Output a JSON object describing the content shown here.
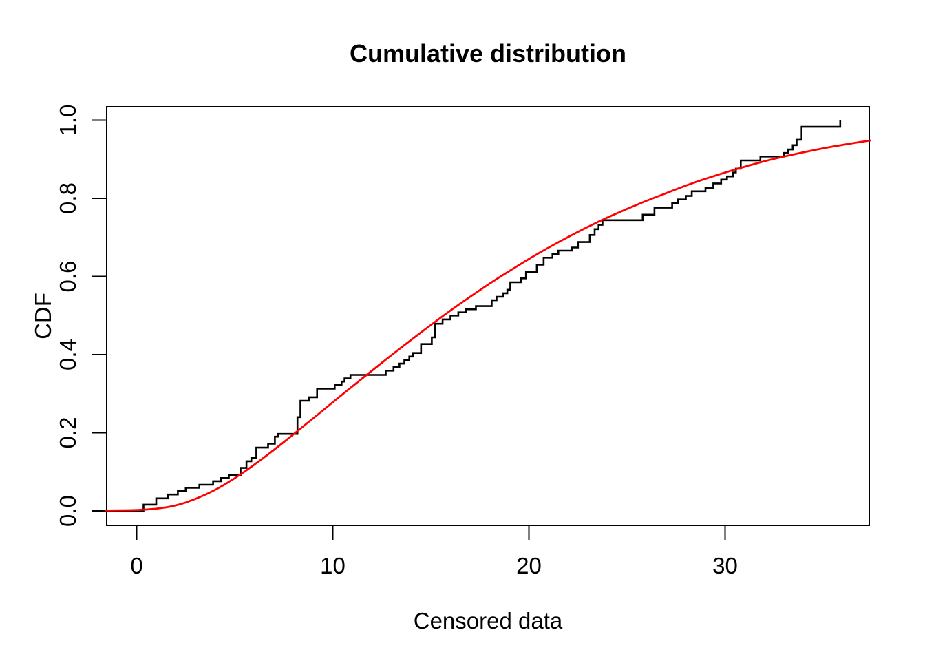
{
  "figure": {
    "background": "#ffffff",
    "frame_color": "#000000"
  },
  "chart_data": {
    "type": "line",
    "title": "Cumulative distribution",
    "xlabel": "Censored data",
    "ylabel": "CDF",
    "x_ticks": [
      0,
      10,
      20,
      30
    ],
    "x_tick_labels": [
      "0",
      "10",
      "20",
      "30"
    ],
    "y_ticks": [
      0.0,
      0.2,
      0.4,
      0.6,
      0.8,
      1.0
    ],
    "y_tick_labels": [
      "0.0",
      "0.2",
      "0.4",
      "0.6",
      "0.8",
      "1.0"
    ],
    "xlim": [
      -1.55,
      37.4
    ],
    "ylim": [
      -0.04,
      1.04
    ],
    "grid": false,
    "legend_position": "none",
    "series": [
      {
        "name": "empirical-cdf-step",
        "type": "step",
        "color": "#000000",
        "description": "Empirical CDF of censored data (step function), steps as [x, cumulative probability after jump]",
        "start_x": -1.55,
        "start_y": 0.0,
        "steps": [
          [
            0.35,
            0.016
          ],
          [
            1.0,
            0.032
          ],
          [
            1.6,
            0.042
          ],
          [
            2.1,
            0.051
          ],
          [
            2.5,
            0.059
          ],
          [
            3.2,
            0.067
          ],
          [
            3.9,
            0.076
          ],
          [
            4.3,
            0.084
          ],
          [
            4.7,
            0.092
          ],
          [
            5.3,
            0.11
          ],
          [
            5.6,
            0.127
          ],
          [
            5.85,
            0.136
          ],
          [
            6.1,
            0.162
          ],
          [
            6.7,
            0.172
          ],
          [
            7.05,
            0.19
          ],
          [
            7.2,
            0.197
          ],
          [
            8.2,
            0.24
          ],
          [
            8.35,
            0.282
          ],
          [
            8.8,
            0.291
          ],
          [
            9.2,
            0.313
          ],
          [
            10.1,
            0.322
          ],
          [
            10.45,
            0.331
          ],
          [
            10.6,
            0.339
          ],
          [
            10.9,
            0.348
          ],
          [
            12.7,
            0.359
          ],
          [
            13.1,
            0.368
          ],
          [
            13.4,
            0.377
          ],
          [
            13.65,
            0.386
          ],
          [
            13.9,
            0.395
          ],
          [
            14.1,
            0.404
          ],
          [
            14.5,
            0.427
          ],
          [
            15.05,
            0.444
          ],
          [
            15.2,
            0.479
          ],
          [
            15.6,
            0.49
          ],
          [
            16.0,
            0.5
          ],
          [
            16.4,
            0.508
          ],
          [
            16.8,
            0.516
          ],
          [
            17.3,
            0.524
          ],
          [
            18.1,
            0.539
          ],
          [
            18.35,
            0.548
          ],
          [
            18.7,
            0.557
          ],
          [
            18.9,
            0.566
          ],
          [
            19.05,
            0.585
          ],
          [
            19.6,
            0.595
          ],
          [
            19.85,
            0.612
          ],
          [
            20.4,
            0.63
          ],
          [
            20.75,
            0.648
          ],
          [
            21.2,
            0.657
          ],
          [
            21.5,
            0.666
          ],
          [
            22.2,
            0.674
          ],
          [
            22.5,
            0.688
          ],
          [
            23.1,
            0.706
          ],
          [
            23.35,
            0.721
          ],
          [
            23.55,
            0.732
          ],
          [
            23.75,
            0.744
          ],
          [
            25.8,
            0.758
          ],
          [
            26.4,
            0.776
          ],
          [
            27.3,
            0.788
          ],
          [
            27.6,
            0.797
          ],
          [
            28.0,
            0.806
          ],
          [
            28.3,
            0.818
          ],
          [
            29.0,
            0.827
          ],
          [
            29.4,
            0.838
          ],
          [
            29.8,
            0.848
          ],
          [
            30.1,
            0.856
          ],
          [
            30.4,
            0.866
          ],
          [
            30.55,
            0.876
          ],
          [
            30.8,
            0.897
          ],
          [
            31.8,
            0.907
          ],
          [
            33.0,
            0.916
          ],
          [
            33.2,
            0.925
          ],
          [
            33.45,
            0.936
          ],
          [
            33.65,
            0.95
          ],
          [
            33.9,
            0.983
          ],
          [
            35.87,
            1.0
          ]
        ]
      },
      {
        "name": "fitted-cdf-curve",
        "type": "smooth-line",
        "color": "#FF0000",
        "description": "Fitted theoretical CDF (red curve), sampled as [x, F(x)]",
        "points": [
          [
            -1.55,
            0.001
          ],
          [
            0,
            0.002
          ],
          [
            1,
            0.005
          ],
          [
            2,
            0.013
          ],
          [
            3,
            0.03
          ],
          [
            4,
            0.053
          ],
          [
            5,
            0.083
          ],
          [
            6,
            0.118
          ],
          [
            7,
            0.156
          ],
          [
            8,
            0.196
          ],
          [
            9,
            0.237
          ],
          [
            10,
            0.278
          ],
          [
            11,
            0.319
          ],
          [
            12,
            0.359
          ],
          [
            13,
            0.399
          ],
          [
            14,
            0.438
          ],
          [
            15,
            0.476
          ],
          [
            16,
            0.513
          ],
          [
            17,
            0.548
          ],
          [
            18,
            0.582
          ],
          [
            19,
            0.614
          ],
          [
            20,
            0.645
          ],
          [
            21,
            0.674
          ],
          [
            22,
            0.701
          ],
          [
            23,
            0.727
          ],
          [
            24,
            0.751
          ],
          [
            25,
            0.773
          ],
          [
            26,
            0.794
          ],
          [
            27,
            0.813
          ],
          [
            28,
            0.833
          ],
          [
            29,
            0.85
          ],
          [
            30,
            0.866
          ],
          [
            31,
            0.881
          ],
          [
            32,
            0.895
          ],
          [
            33,
            0.907
          ],
          [
            34,
            0.918
          ],
          [
            35,
            0.928
          ],
          [
            36,
            0.937
          ],
          [
            37.4,
            0.948
          ]
        ]
      }
    ]
  }
}
